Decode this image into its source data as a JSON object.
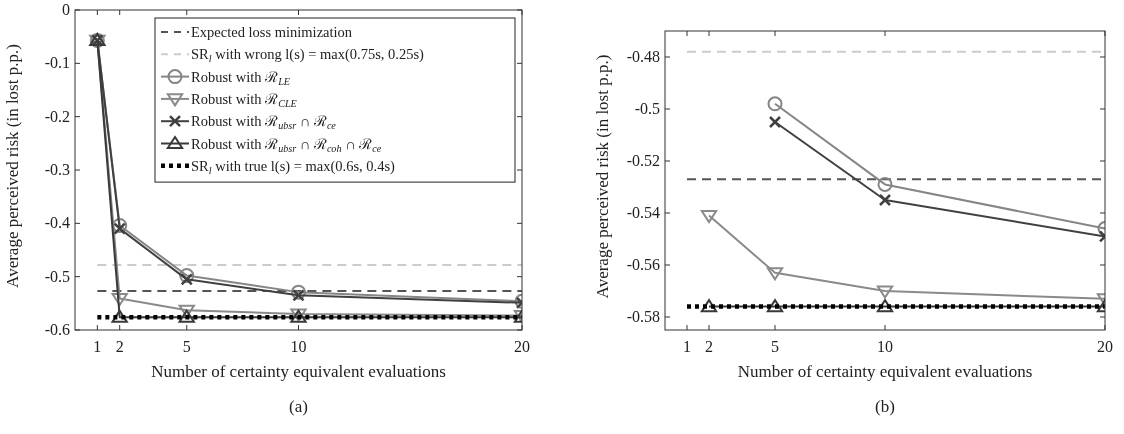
{
  "chart_data": [
    {
      "type": "line",
      "xlabel": "Number of certainty equivalent evaluations",
      "ylabel": "Average perceived risk (in lost p.p.)",
      "annotations": [
        "(a)"
      ],
      "xlim": [
        0,
        20
      ],
      "xticks": [
        1,
        2,
        5,
        10,
        20
      ],
      "ylim": [
        -0.6,
        0
      ],
      "yticks": [
        -0.6,
        -0.5,
        -0.4,
        -0.3,
        -0.2,
        -0.1,
        0
      ],
      "grid": false,
      "legend": "top right",
      "series": [
        {
          "name": "Expected loss minimization",
          "color": "#555555",
          "x": [
            1,
            20
          ],
          "values": [
            -0.527,
            -0.527
          ],
          "line_style": "dashed",
          "marker": "none"
        },
        {
          "name": "SR$_{l}$ with wrong l(s) = max(0.75s, 0.25s)",
          "color": "#cccccc",
          "x": [
            1,
            20
          ],
          "values": [
            -0.478,
            -0.478
          ],
          "line_style": "dashed",
          "marker": "none"
        },
        {
          "name": "Robust with ℛ$_{LE}$",
          "color": "#858585",
          "x": [
            1,
            2,
            5,
            10,
            20
          ],
          "values": [
            -0.057,
            -0.404,
            -0.498,
            -0.529,
            -0.546
          ],
          "line_style": "solid",
          "marker": "circle"
        },
        {
          "name": "Robust with ℛ$_{CLE}$",
          "color": "#8a8a8a",
          "x": [
            1,
            2,
            5,
            10,
            20
          ],
          "values": [
            -0.057,
            -0.541,
            -0.563,
            -0.57,
            -0.573
          ],
          "line_style": "solid",
          "marker": "triangle-down"
        },
        {
          "name": "Robust with ℛ$_{ubsr}$ ∩ ℛ$_{ce}$",
          "color": "#404040",
          "x": [
            1,
            2,
            5,
            10,
            20
          ],
          "values": [
            -0.057,
            -0.41,
            -0.505,
            -0.535,
            -0.549
          ],
          "line_style": "solid",
          "marker": "cross"
        },
        {
          "name": "Robust with ℛ$_{ubsr}$ ∩ ℛ$_{coh}$ ∩ ℛ$_{ce}$",
          "color": "#3a3a3a",
          "x": [
            1,
            2,
            5,
            10,
            20
          ],
          "values": [
            -0.057,
            -0.576,
            -0.576,
            -0.576,
            -0.576
          ],
          "line_style": "solid",
          "marker": "triangle"
        },
        {
          "name": "SR$_{l}$ with true l(s) = max(0.6s, 0.4s)",
          "color": "#000000",
          "x": [
            1,
            20
          ],
          "values": [
            -0.576,
            -0.576
          ],
          "line_style": "dotted",
          "marker": "none"
        }
      ]
    },
    {
      "type": "line",
      "xlabel": "Number of certainty equivalent evaluations",
      "ylabel": "Average perceived risk (in lost p.p.)",
      "annotations": [
        "(b)"
      ],
      "xlim": [
        0,
        20
      ],
      "xticks": [
        1,
        2,
        5,
        10,
        20
      ],
      "ylim": [
        -0.585,
        -0.47
      ],
      "yticks": [
        -0.58,
        -0.56,
        -0.54,
        -0.52,
        -0.5,
        -0.48
      ],
      "grid": false,
      "legend": false,
      "series": [
        {
          "color": "#555555",
          "x": [
            1,
            20
          ],
          "values": [
            -0.527,
            -0.527
          ],
          "line_style": "dashed",
          "marker": "none"
        },
        {
          "color": "#cccccc",
          "x": [
            1,
            20
          ],
          "values": [
            -0.478,
            -0.478
          ],
          "line_style": "dashed",
          "marker": "none"
        },
        {
          "color": "#858585",
          "x": [
            5,
            10,
            20
          ],
          "values": [
            -0.498,
            -0.529,
            -0.546
          ],
          "line_style": "solid",
          "marker": "circle"
        },
        {
          "color": "#8a8a8a",
          "x": [
            2,
            5,
            10,
            20
          ],
          "values": [
            -0.541,
            -0.563,
            -0.57,
            -0.573
          ],
          "line_style": "solid",
          "marker": "triangle-down"
        },
        {
          "color": "#404040",
          "x": [
            5,
            10,
            20
          ],
          "values": [
            -0.505,
            -0.535,
            -0.549
          ],
          "line_style": "solid",
          "marker": "cross"
        },
        {
          "color": "#3a3a3a",
          "x": [
            2,
            5,
            10,
            20
          ],
          "values": [
            -0.576,
            -0.576,
            -0.576,
            -0.576
          ],
          "line_style": "solid",
          "marker": "triangle"
        },
        {
          "color": "#000000",
          "x": [
            1,
            20
          ],
          "values": [
            -0.576,
            -0.576
          ],
          "line_style": "dotted",
          "marker": "none"
        }
      ]
    }
  ]
}
